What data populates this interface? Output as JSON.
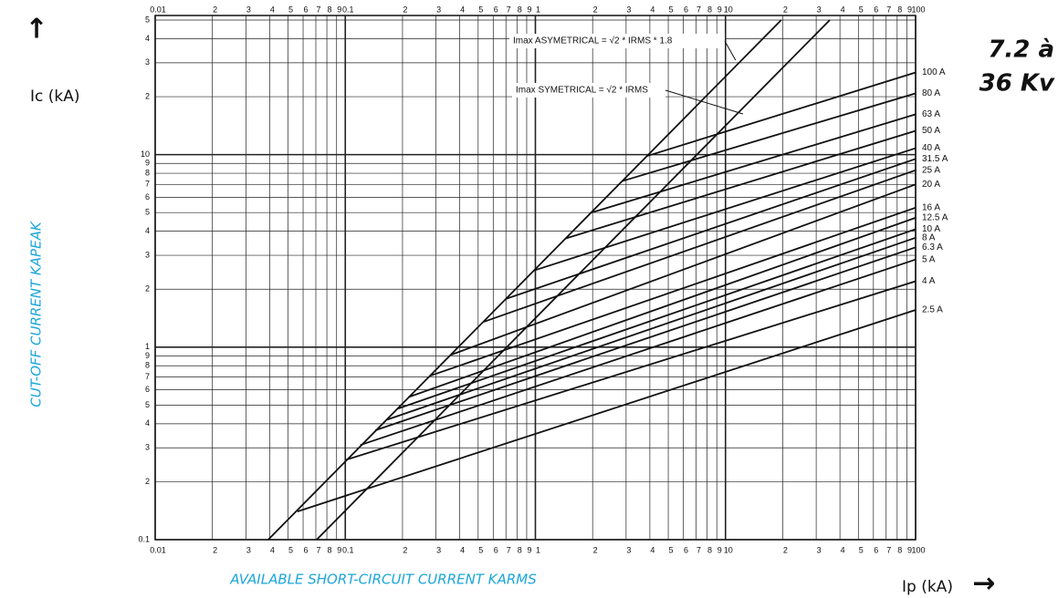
{
  "chart_data": {
    "type": "line",
    "title": [
      "7.2 à",
      "36 Kv"
    ],
    "y_label_top": "Ic (kA)",
    "y_label": "CUT-OFF CURRENT KAPEAK",
    "x_label": "AVAILABLE SHORT-CIRCUIT CURRENT KARMS",
    "x_label_right": "Ip (kA)",
    "log_x": true,
    "log_y": true,
    "grid": true,
    "xlim": [
      0.01,
      100
    ],
    "ylim": [
      0.1,
      50
    ],
    "xticks": [
      0.01,
      {
        "value": 0.02,
        "label": "2"
      },
      {
        "value": 0.03,
        "label": "3"
      },
      {
        "value": 0.04,
        "label": "4"
      },
      {
        "value": 0.05,
        "label": "5"
      },
      {
        "value": 0.06,
        "label": "6"
      },
      {
        "value": 0.07,
        "label": "7"
      },
      {
        "value": 0.08,
        "label": "8"
      },
      {
        "value": 0.09,
        "label": "9"
      },
      0.1,
      {
        "value": 0.2,
        "label": "2"
      },
      {
        "value": 0.3,
        "label": "3"
      },
      {
        "value": 0.4,
        "label": "4"
      },
      {
        "value": 0.5,
        "label": "5"
      },
      {
        "value": 0.6,
        "label": "6"
      },
      {
        "value": 0.7,
        "label": "7"
      },
      {
        "value": 0.8,
        "label": "8"
      },
      {
        "value": 0.9,
        "label": "9"
      },
      1,
      2,
      3,
      4,
      5,
      6,
      7,
      8,
      9,
      10,
      {
        "value": 20,
        "label": "2"
      },
      {
        "value": 30,
        "label": "3"
      },
      {
        "value": 40,
        "label": "4"
      },
      {
        "value": 50,
        "label": "5"
      },
      {
        "value": 60,
        "label": "6"
      },
      {
        "value": 70,
        "label": "7"
      },
      {
        "value": 80,
        "label": "8"
      },
      {
        "value": 90,
        "label": "9"
      },
      100
    ],
    "yticks": [
      0.1,
      {
        "value": 0.2,
        "label": "2"
      },
      {
        "value": 0.3,
        "label": "3"
      },
      {
        "value": 0.4,
        "label": "4"
      },
      {
        "value": 0.5,
        "label": "5"
      },
      {
        "value": 0.6,
        "label": "6"
      },
      {
        "value": 0.7,
        "label": "7"
      },
      {
        "value": 0.8,
        "label": "8"
      },
      {
        "value": 0.9,
        "label": "9"
      },
      1,
      2,
      3,
      4,
      5,
      6,
      7,
      8,
      9,
      10,
      {
        "value": 20,
        "label": "2"
      },
      {
        "value": 30,
        "label": "3"
      },
      {
        "value": 40,
        "label": "4"
      },
      {
        "value": 50,
        "label": "5"
      }
    ],
    "series": [
      {
        "name": "Imax ASYMETRICAL = √2 * IRMS * 1.8",
        "color": "#111",
        "x": [
          0.0393,
          19.64
        ],
        "values": [
          0.1,
          50
        ]
      },
      {
        "name": "Imax SYMETRICAL = √2 * IRMS",
        "color": "#111",
        "x": [
          0.0707,
          35.36
        ],
        "values": [
          0.1,
          50
        ]
      },
      {
        "name": "100 A",
        "color": "#111",
        "x": [
          3.86,
          100
        ],
        "values": [
          9.83,
          26.7
        ]
      },
      {
        "name": "80 A",
        "color": "#111",
        "x": [
          2.86,
          100
        ],
        "values": [
          7.28,
          20.8
        ]
      },
      {
        "name": "63 A",
        "color": "#111",
        "x": [
          1.96,
          100
        ],
        "values": [
          4.99,
          16.2
        ]
      },
      {
        "name": "50 A",
        "color": "#111",
        "x": [
          1.44,
          100
        ],
        "values": [
          3.67,
          13.3
        ]
      },
      {
        "name": "40 A",
        "color": "#111",
        "x": [
          0.98,
          100
        ],
        "values": [
          2.5,
          10.8
        ]
      },
      {
        "name": "31.5 A",
        "color": "#111",
        "x": [
          0.7,
          100
        ],
        "values": [
          1.78,
          9.5
        ]
      },
      {
        "name": "25 A",
        "color": "#111",
        "x": [
          0.53,
          100
        ],
        "values": [
          1.35,
          8.3
        ]
      },
      {
        "name": "20 A",
        "color": "#111",
        "x": [
          0.357,
          100
        ],
        "values": [
          0.91,
          7.0
        ]
      },
      {
        "name": "16 A",
        "color": "#111",
        "x": [
          0.28,
          100
        ],
        "values": [
          0.71,
          5.3
        ]
      },
      {
        "name": "12.5 A",
        "color": "#111",
        "x": [
          0.215,
          100
        ],
        "values": [
          0.55,
          4.7
        ]
      },
      {
        "name": "10 A",
        "color": "#111",
        "x": [
          0.19,
          100
        ],
        "values": [
          0.48,
          4.1
        ]
      },
      {
        "name": "8 A",
        "color": "#111",
        "x": [
          0.166,
          100
        ],
        "values": [
          0.42,
          3.7
        ]
      },
      {
        "name": "6.3 A",
        "color": "#111",
        "x": [
          0.144,
          100
        ],
        "values": [
          0.37,
          3.3
        ]
      },
      {
        "name": "5 A",
        "color": "#111",
        "x": [
          0.12,
          100
        ],
        "values": [
          0.31,
          2.85
        ]
      },
      {
        "name": "4 A",
        "color": "#111",
        "x": [
          0.101,
          100
        ],
        "values": [
          0.26,
          2.2
        ]
      },
      {
        "name": "2.5 A",
        "color": "#111",
        "x": [
          0.056,
          100
        ],
        "values": [
          0.14,
          1.56
        ]
      }
    ]
  }
}
